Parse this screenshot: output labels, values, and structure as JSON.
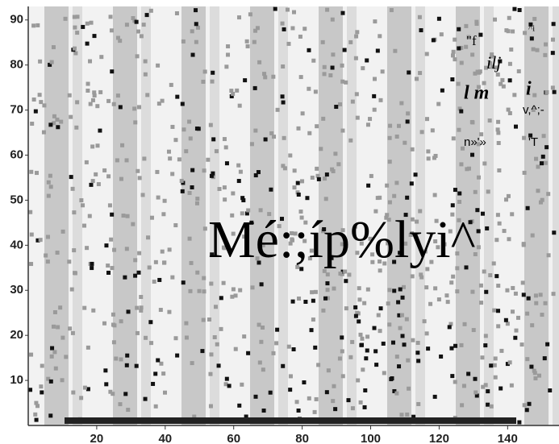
{
  "chart_data": {
    "type": "image",
    "xlim": [
      0,
      155
    ],
    "xticks": [
      20,
      40,
      60,
      80,
      100,
      120,
      140
    ],
    "ylim": [
      0,
      93
    ],
    "yticks": [
      10,
      20,
      30,
      40,
      50,
      60,
      70,
      80,
      90
    ],
    "annotations": [
      "\"f",
      "ilj",
      "l m",
      "i",
      "v,^;-",
      "n»'»",
      "'T",
      "Mé:;íp%lyi^",
      "^i"
    ]
  }
}
